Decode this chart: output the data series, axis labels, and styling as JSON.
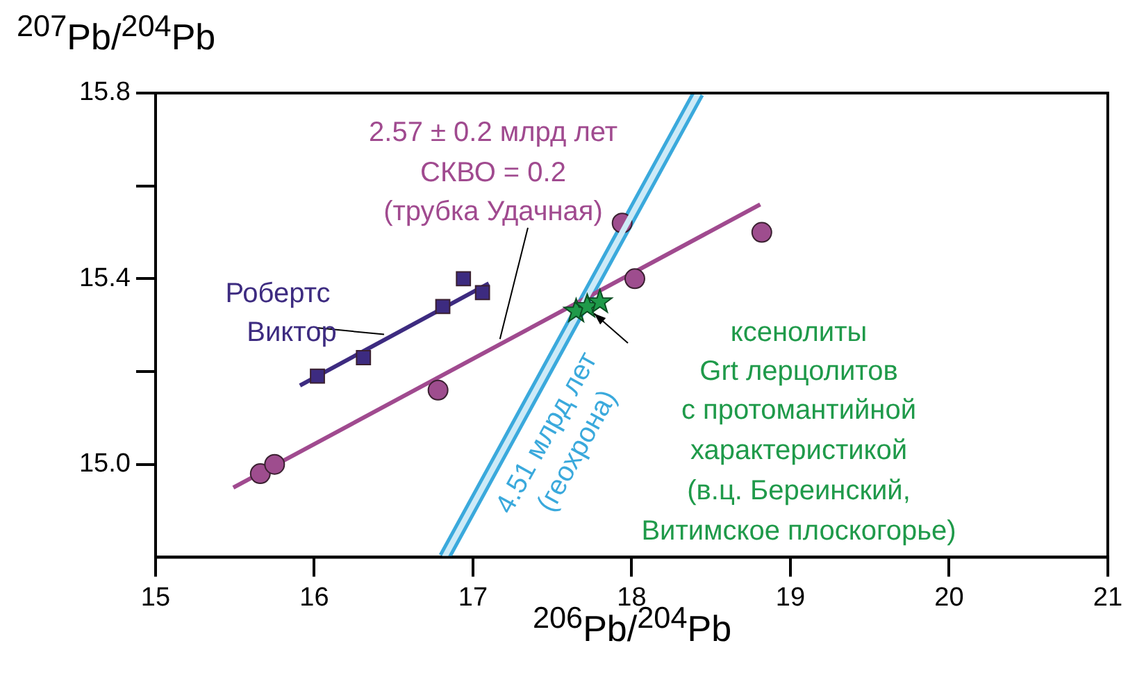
{
  "chart_data": {
    "type": "scatter",
    "xlabel": "$^{206}$Pb/$^{204}$Pb",
    "ylabel": "$^{207}$Pb/$^{204}$Pb",
    "xlim": [
      15,
      21
    ],
    "xticks": [
      15,
      16,
      17,
      18,
      19,
      20,
      21
    ],
    "ylim": [
      14.8,
      15.8
    ],
    "yticks": [
      {
        "value": 15,
        "label": "15.0"
      },
      {
        "value": 15.2,
        "label": null
      },
      15.4,
      {
        "value": 15.6,
        "label": null
      },
      15.8
    ],
    "grid": false,
    "legend": false,
    "annotations": [
      {
        "text": "Робертс",
        "x": 16.44,
        "y": 15.28
      },
      "Виктор",
      "2.57 ± 0.2 млрд лет",
      "СКВО = 0.2",
      {
        "text": "(трубка Удачная)",
        "x": 17.17,
        "y": 15.27
      },
      "4.51 млрд лет",
      "(геохрона)",
      "ксенолиты",
      "Grt лерцолитов",
      "с протомантийной",
      "характеристикой",
      "(в.ц. Береинский,",
      "Витимское плоскогорье)"
    ],
    "series": [
      {
        "type": "scatter",
        "color": "#3d2b80",
        "marker": "square",
        "x": [
          16.02,
          16.31,
          16.81,
          16.94,
          17.06
        ],
        "values": [
          15.19,
          15.23,
          15.34,
          15.4,
          15.37
        ]
      },
      {
        "type": "line",
        "color": "#3d2b80",
        "marker": "none",
        "x": [
          15.91,
          17.1
        ],
        "values": [
          15.17,
          15.39
        ]
      },
      {
        "type": "scatter",
        "color": "#9e4d8e",
        "marker": "circle",
        "x": [
          15.66,
          15.75,
          16.78,
          17.94,
          18.02,
          18.82
        ],
        "values": [
          14.98,
          15.0,
          15.16,
          15.52,
          15.4,
          15.5
        ]
      },
      {
        "type": "line",
        "color": "#a04a8f",
        "marker": "none",
        "x": [
          15.49,
          18.81
        ],
        "values": [
          14.95,
          15.56
        ]
      },
      {
        "type": "scatter",
        "color": "#1f9a4a",
        "marker": "star",
        "x": [
          17.65,
          17.72,
          17.8
        ],
        "values": [
          15.33,
          15.34,
          15.35
        ]
      },
      {
        "type": "line",
        "color": "#3aa9dc",
        "marker": "none",
        "x": [
          16.82,
          18.42
        ],
        "values": [
          14.8,
          15.8
        ]
      }
    ]
  }
}
